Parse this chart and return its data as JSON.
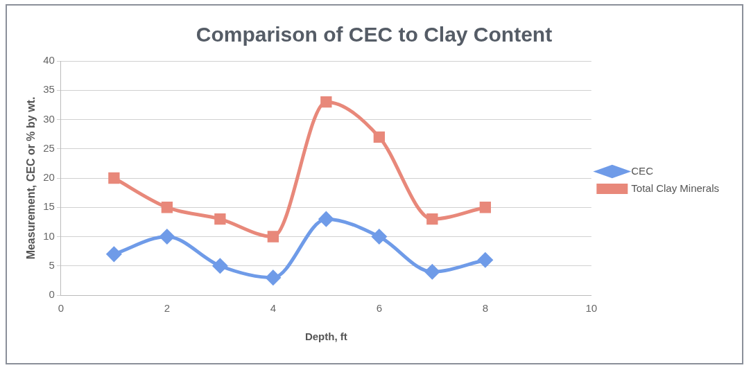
{
  "chart_data": {
    "type": "line",
    "title": "Comparison of CEC to Clay Content",
    "xlabel": "Depth, ft",
    "ylabel": "Measurement, CEC or % by wt.",
    "x": [
      1,
      2,
      3,
      4,
      5,
      6,
      7,
      8
    ],
    "series": [
      {
        "name": "CEC",
        "color": "#6f9be8",
        "marker": "diamond",
        "values": [
          7,
          10,
          5,
          3,
          13,
          10,
          4,
          6
        ]
      },
      {
        "name": "Total Clay Minerals",
        "color": "#e8887a",
        "marker": "square",
        "values": [
          20,
          15,
          13,
          10,
          33,
          27,
          13,
          15
        ]
      }
    ],
    "xlim": [
      0,
      10
    ],
    "xticks": [
      0,
      2,
      4,
      6,
      8,
      10
    ],
    "ylim": [
      0,
      40
    ],
    "yticks": [
      0,
      5,
      10,
      15,
      20,
      25,
      30,
      35,
      40
    ],
    "grid": "y",
    "legend": "right",
    "line_style": "solid"
  }
}
